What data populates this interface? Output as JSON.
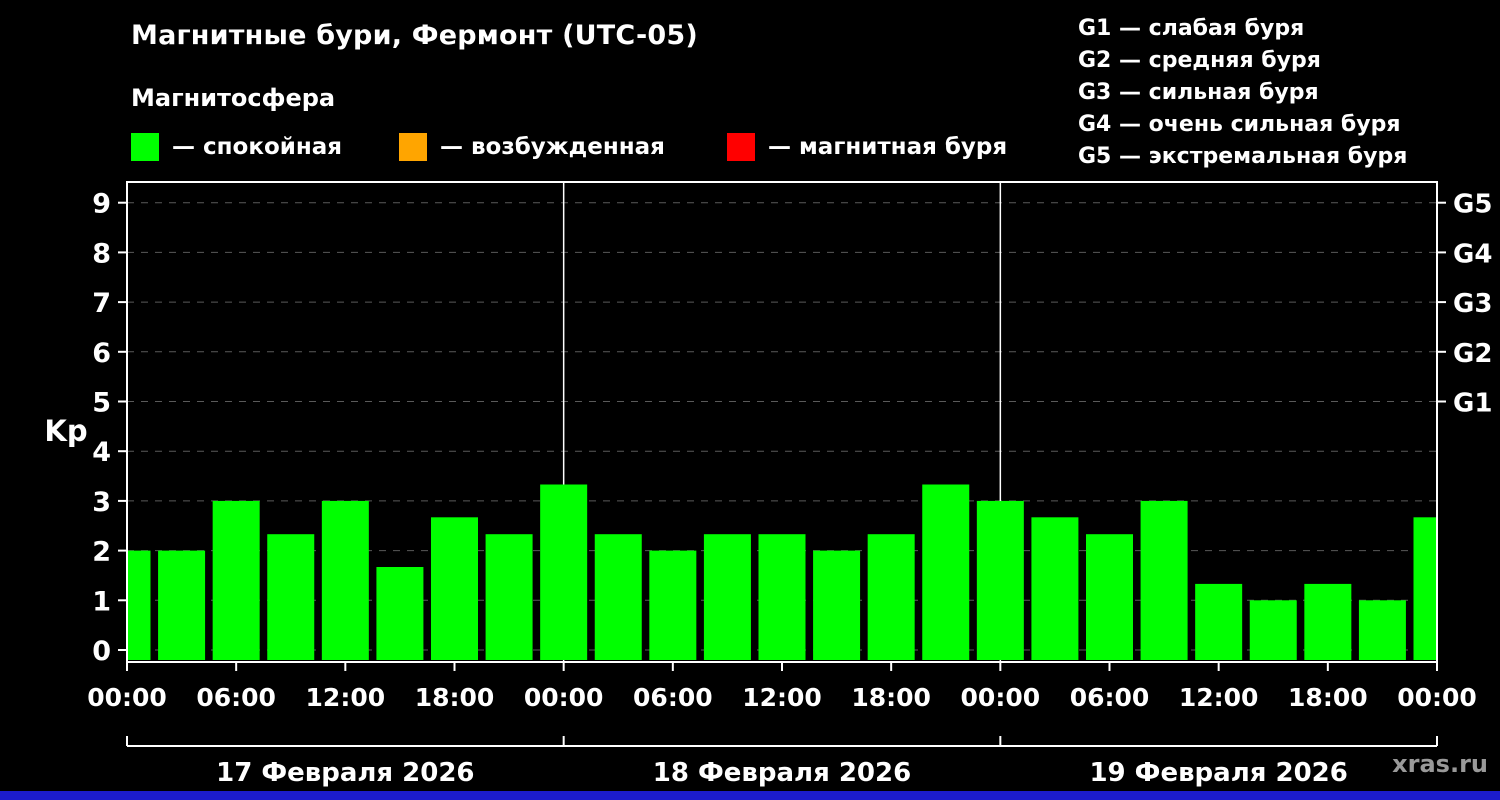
{
  "title": "Магнитные бури, Фермонт (UTC-05)",
  "subtitle": "Магнитосфера",
  "legend": {
    "items": [
      {
        "name": "quiet",
        "label": "— спокойная",
        "color": "#00ff00"
      },
      {
        "name": "excited",
        "label": "— возбужденная",
        "color": "#ffa500"
      },
      {
        "name": "storm",
        "label": "— магнитная буря",
        "color": "#ff0000"
      }
    ],
    "g_scale": [
      "G1 — слабая буря",
      "G2 — средняя буря",
      "G3 — сильная буря",
      "G4 — очень сильная буря",
      "G5 — экстремальная буря"
    ]
  },
  "watermark": "xras.ru",
  "colors": {
    "background": "#000000",
    "axis": "#ffffff",
    "grid": "#5a5a5a",
    "footer_strip": "#1c1ccc",
    "watermark_text": "#999999"
  },
  "chart_data": {
    "type": "bar",
    "title": "Магнитные бури, Фермонт (UTC-05)",
    "ylabel": "Kp",
    "ylim": [
      0,
      9
    ],
    "yticks": [
      0,
      1,
      2,
      3,
      4,
      5,
      6,
      7,
      8,
      9
    ],
    "right_axis_labels": [
      {
        "value": 5,
        "label": "G1"
      },
      {
        "value": 6,
        "label": "G2"
      },
      {
        "value": 7,
        "label": "G3"
      },
      {
        "value": 8,
        "label": "G4"
      },
      {
        "value": 9,
        "label": "G5"
      }
    ],
    "x_span_hours": 72,
    "start_hour": 0,
    "step_hours": 3,
    "x_tick_labels": [
      "00:00",
      "06:00",
      "12:00",
      "18:00",
      "00:00",
      "06:00",
      "12:00",
      "18:00",
      "00:00",
      "06:00",
      "12:00",
      "18:00",
      "00:00"
    ],
    "day_labels": [
      "17 Февраля 2026",
      "18 Февраля 2026",
      "19 Февраля 2026"
    ],
    "day_boundaries_hours": [
      0,
      24,
      48,
      72
    ],
    "values": [
      2,
      2,
      3,
      2.33,
      3,
      1.67,
      2.67,
      2.33,
      3.33,
      2.33,
      2,
      2.33,
      2.33,
      2,
      2.33,
      3.33,
      3,
      2.67,
      2.33,
      3,
      1.33,
      1,
      1.33,
      1,
      2.67
    ],
    "color_thresholds": [
      {
        "max": 4,
        "color": "#00ff00"
      },
      {
        "max": 5,
        "color": "#ffa500"
      },
      {
        "max": 99,
        "color": "#ff0000"
      }
    ],
    "grid": true,
    "legend_position": "top"
  }
}
